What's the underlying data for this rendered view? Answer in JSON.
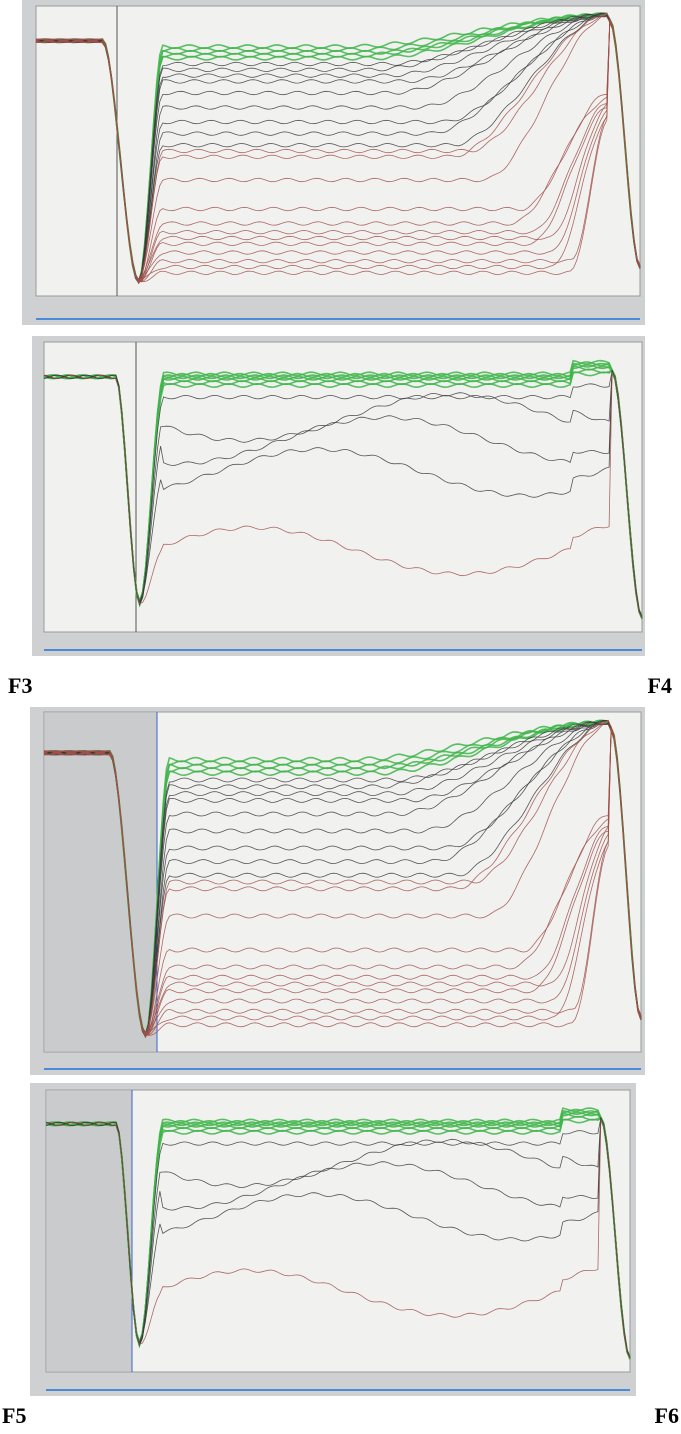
{
  "figure": {
    "rows": [
      {
        "left": "F3",
        "right": "F4"
      },
      {
        "left": "F5",
        "right": "F6"
      }
    ]
  }
}
